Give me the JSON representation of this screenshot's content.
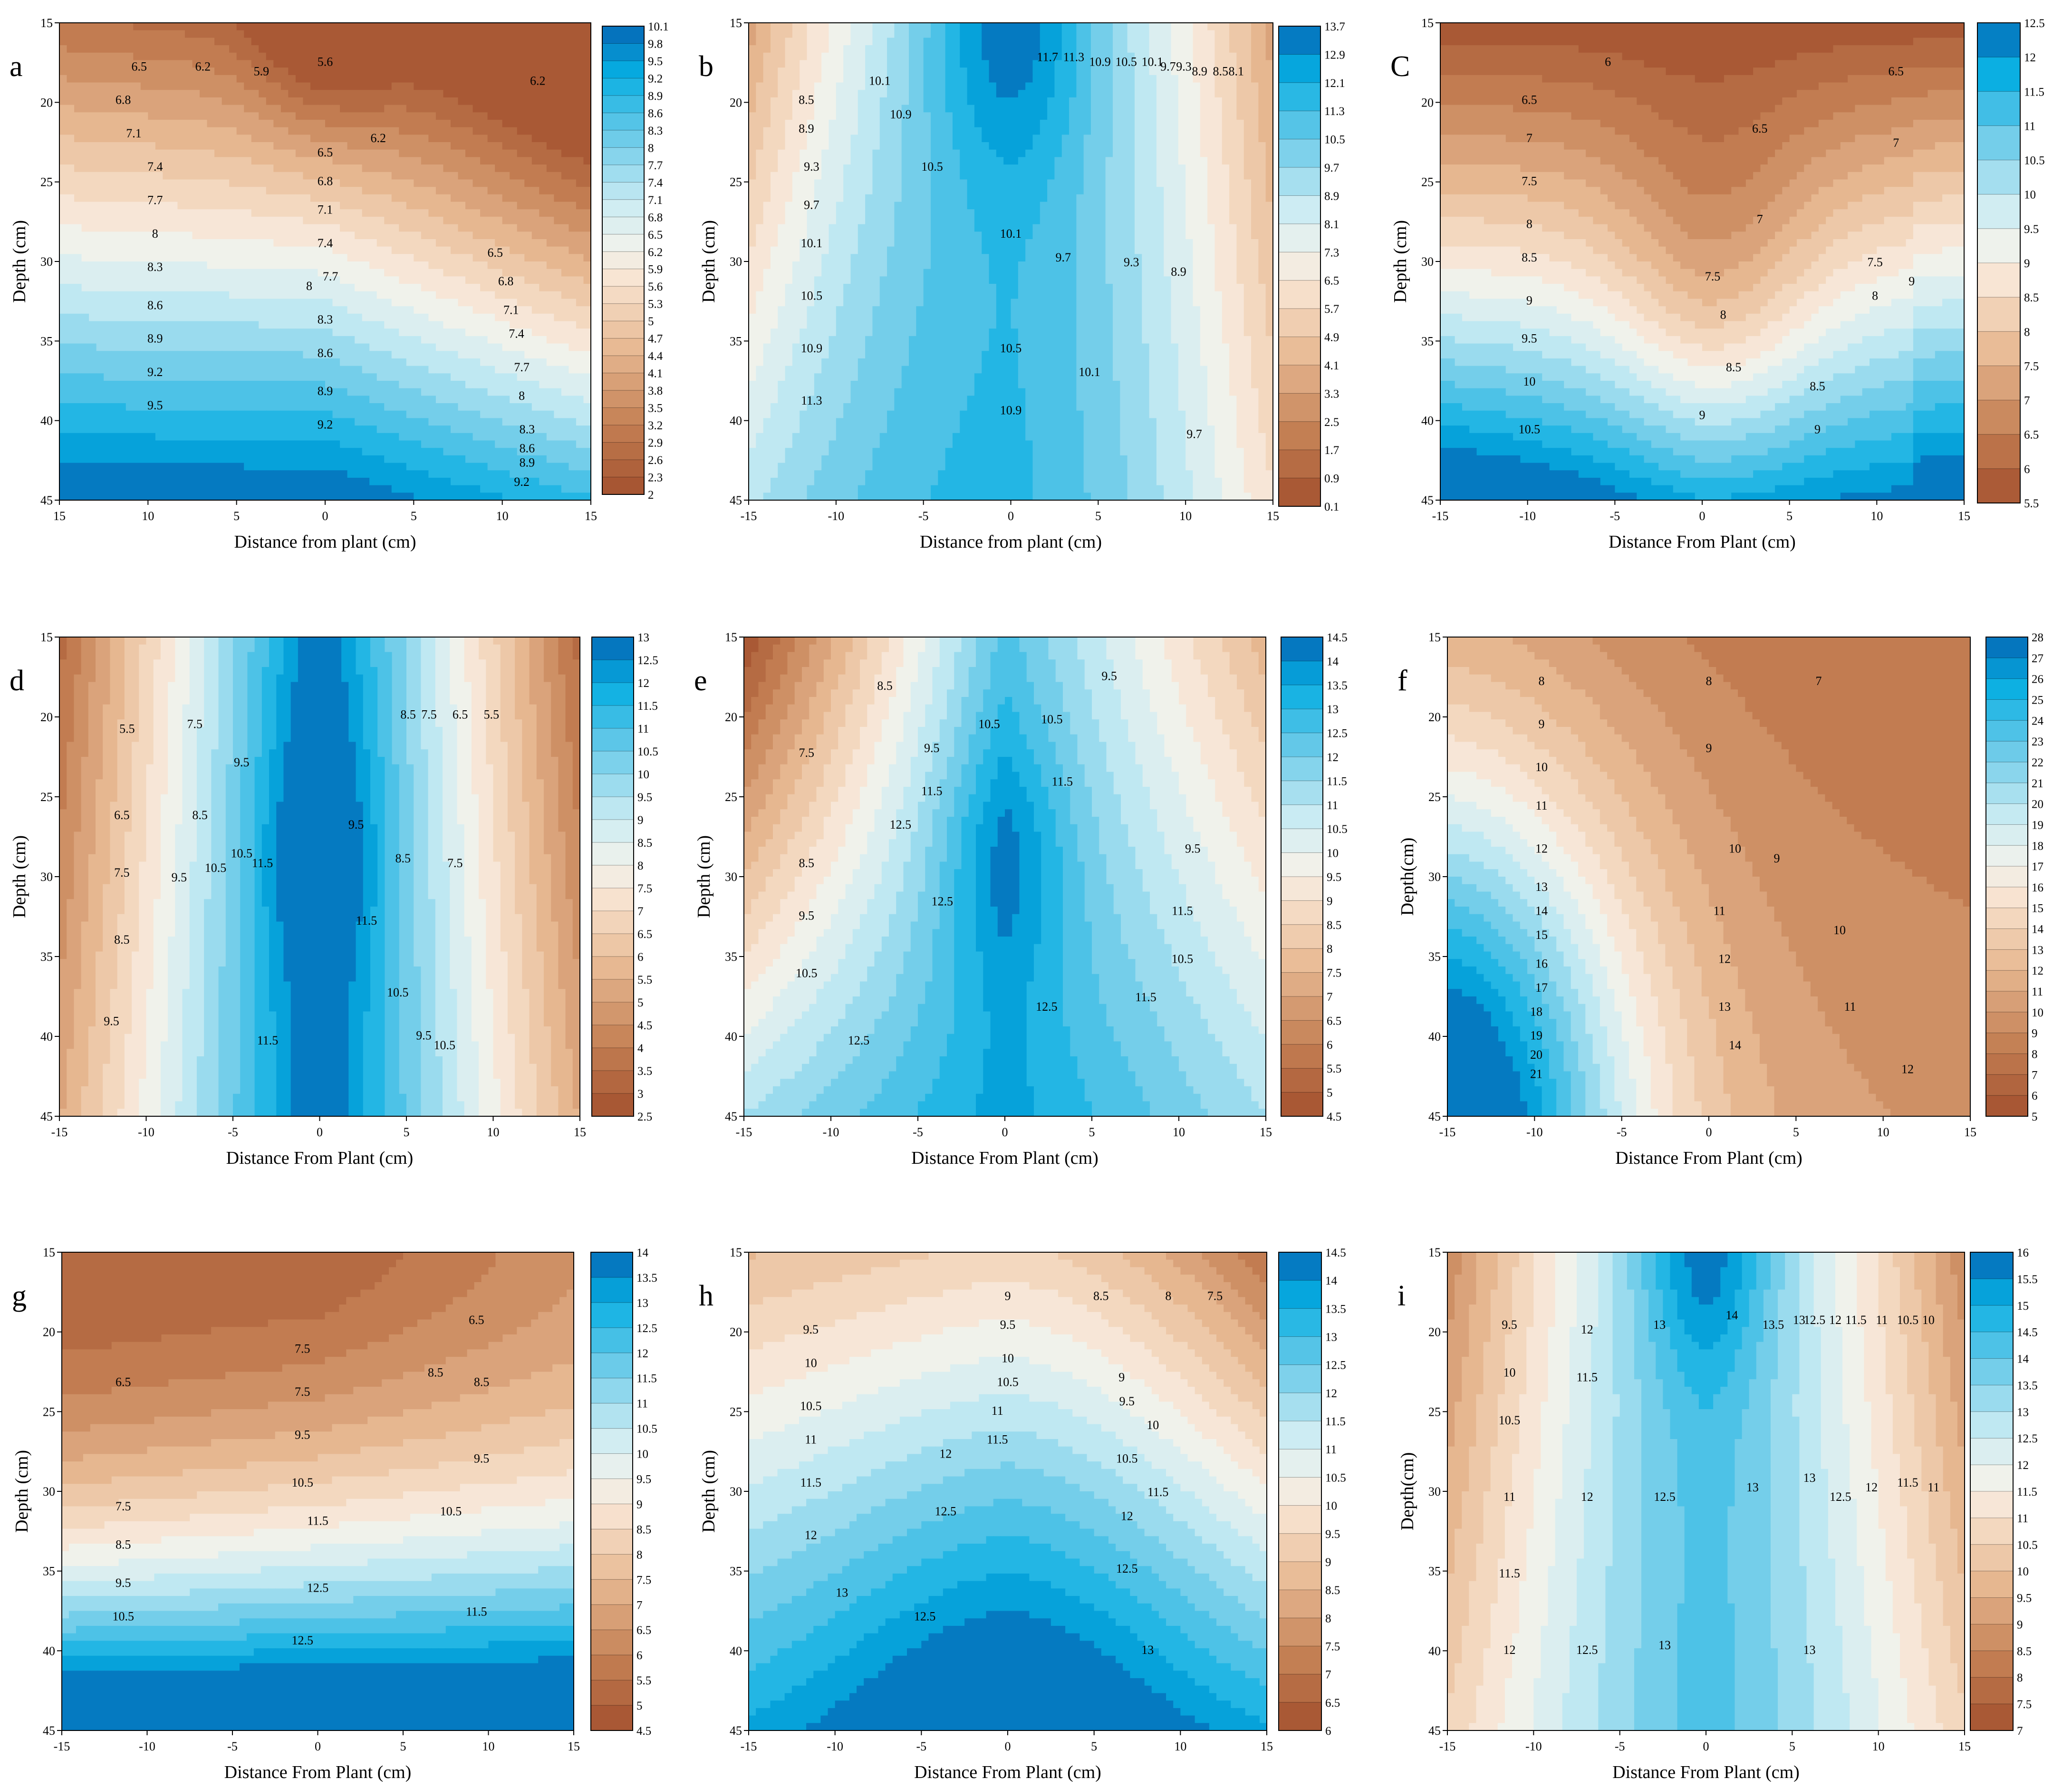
{
  "figure": {
    "title": "",
    "domain": "soil moisture contour panels"
  },
  "chart_data": [
    {
      "id": "a",
      "type": "contour",
      "letter": "a",
      "xlabel": "Distance from plant (cm)",
      "ylabel": "Depth (cm)",
      "xticks": [
        "15",
        "10",
        "5",
        "0",
        "5",
        "10",
        "15"
      ],
      "yticks": [
        "15",
        "20",
        "25",
        "30",
        "35",
        "40",
        "45"
      ],
      "xlim": [
        -15,
        15
      ],
      "ylim": [
        15,
        45
      ],
      "colorbar": {
        "min": 2,
        "max": 10.1,
        "ticks": [
          "10.1",
          "9.8",
          "9.5",
          "9.2",
          "8.9",
          "8.6",
          "8.3",
          "8",
          "7.7",
          "7.4",
          "7.1",
          "6.8",
          "6.5",
          "6.2",
          "5.9",
          "5.6",
          "5.3",
          "5",
          "4.7",
          "4.4",
          "4.1",
          "3.8",
          "3.5",
          "3.2",
          "2.9",
          "2.6",
          "2.3",
          "2"
        ]
      },
      "field": {
        "kind": "a",
        "vmin": 5.4,
        "vmax": 10.1
      },
      "contour_labels": [
        "6.5",
        "6.2",
        "5.9",
        "5.6",
        "6.2",
        "6.8",
        "7.1",
        "6.2",
        "7.4",
        "6.5",
        "7.7",
        "6.8",
        "7.1",
        "8",
        "7.4",
        "6.5",
        "8.3",
        "7.7",
        "6.8",
        "8",
        "7.1",
        "8.6",
        "8.3",
        "7.4",
        "8.9",
        "8.6",
        "7.7",
        "9.2",
        "8.9",
        "8",
        "9.5",
        "9.2",
        "8.3",
        "8.6",
        "8.9",
        "9.2"
      ]
    },
    {
      "id": "b",
      "type": "contour",
      "letter": "b",
      "xlabel": "Distance from plant (cm)",
      "ylabel": "Depth (cm)",
      "xticks": [
        "-15",
        "-10",
        "-5",
        "0",
        "5",
        "10",
        "15"
      ],
      "yticks": [
        "15",
        "20",
        "25",
        "30",
        "35",
        "40",
        "45"
      ],
      "xlim": [
        -15,
        15
      ],
      "ylim": [
        15,
        45
      ],
      "colorbar": {
        "min": 0.1,
        "max": 13.7,
        "ticks": [
          "13.7",
          "12.9",
          "12.1",
          "11.3",
          "10.5",
          "9.7",
          "8.9",
          "8.1",
          "7.3",
          "6.5",
          "5.7",
          "4.9",
          "4.1",
          "3.3",
          "2.5",
          "1.7",
          "0.9",
          "0.1"
        ]
      },
      "field": {
        "kind": "b",
        "vmin": 7.5,
        "vmax": 13.7
      },
      "contour_labels": [
        "10.1",
        "11.7",
        "11.3",
        "10.9",
        "10.5",
        "10.1",
        "9.7",
        "9.3",
        "8.9",
        "8.5",
        "8.1",
        "8.5",
        "8.9",
        "9.3",
        "9.7",
        "10.9",
        "10.5",
        "10.1",
        "10.1",
        "9.7",
        "9.3",
        "8.9",
        "10.5",
        "10.9",
        "10.5",
        "10.1",
        "11.3",
        "10.9",
        "9.7"
      ]
    },
    {
      "id": "c",
      "type": "contour",
      "letter": "C",
      "xlabel": "Distance From Plant (cm)",
      "ylabel": "Depth (cm)",
      "xticks": [
        "-15",
        "-10",
        "-5",
        "0",
        "5",
        "10",
        "15"
      ],
      "yticks": [
        "15",
        "20",
        "25",
        "30",
        "35",
        "40",
        "45"
      ],
      "xlim": [
        -15,
        15
      ],
      "ylim": [
        15,
        45
      ],
      "colorbar": {
        "min": 5.5,
        "max": 12.5,
        "ticks": [
          "12.5",
          "12",
          "11.5",
          "11",
          "10.5",
          "10",
          "9.5",
          "9",
          "8.5",
          "8",
          "7.5",
          "7",
          "6.5",
          "6",
          "5.5"
        ]
      },
      "field": {
        "kind": "c",
        "vmin": 5.5,
        "vmax": 12.5
      },
      "contour_labels": [
        "6",
        "6.5",
        "6.5",
        "6.5",
        "7",
        "7",
        "7",
        "7.5",
        "7.5",
        "7.5",
        "8",
        "8",
        "8",
        "8.5",
        "8.5",
        "8.5",
        "9",
        "9",
        "9",
        "9",
        "9.5",
        "10",
        "10.5"
      ]
    },
    {
      "id": "d",
      "type": "contour",
      "letter": "d",
      "xlabel": "Distance From Plant (cm)",
      "ylabel": "Depth (cm)",
      "xticks": [
        "-15",
        "-10",
        "-5",
        "0",
        "5",
        "10",
        "15"
      ],
      "yticks": [
        "15",
        "20",
        "25",
        "30",
        "35",
        "40",
        "45"
      ],
      "xlim": [
        -15,
        15
      ],
      "ylim": [
        15,
        45
      ],
      "colorbar": {
        "min": 2.5,
        "max": 13,
        "ticks": [
          "13",
          "12.5",
          "12",
          "11.5",
          "11",
          "10.5",
          "10",
          "9.5",
          "9",
          "8.5",
          "8",
          "7.5",
          "7",
          "6.5",
          "6",
          "5.5",
          "5",
          "4.5",
          "4",
          "3.5",
          "3",
          "2.5"
        ]
      },
      "field": {
        "kind": "d",
        "vmin": 2.5,
        "vmax": 13
      },
      "contour_labels": [
        "5.5",
        "7.5",
        "9.5",
        "8.5",
        "7.5",
        "6.5",
        "5.5",
        "6.5",
        "8.5",
        "10.5",
        "9.5",
        "7.5",
        "10.5",
        "11.5",
        "9.5",
        "8.5",
        "7.5",
        "11.5",
        "8.5",
        "10.5",
        "9.5",
        "9.5",
        "11.5",
        "10.5"
      ]
    },
    {
      "id": "e",
      "type": "contour",
      "letter": "e",
      "xlabel": "Distance From Plant (cm)",
      "ylabel": "Depth (cm)",
      "xticks": [
        "-15",
        "-10",
        "-5",
        "0",
        "5",
        "10",
        "15"
      ],
      "yticks": [
        "15",
        "20",
        "25",
        "30",
        "35",
        "40",
        "45"
      ],
      "xlim": [
        -15,
        15
      ],
      "ylim": [
        15,
        45
      ],
      "colorbar": {
        "min": 4.5,
        "max": 14.5,
        "ticks": [
          "14.5",
          "14",
          "13.5",
          "13",
          "12.5",
          "12",
          "11.5",
          "11",
          "10.5",
          "10",
          "9.5",
          "9",
          "8.5",
          "8",
          "7.5",
          "7",
          "6.5",
          "6",
          "5.5",
          "5",
          "4.5"
        ]
      },
      "field": {
        "kind": "e",
        "vmin": 4.5,
        "vmax": 14.5
      },
      "contour_labels": [
        "8.5",
        "9.5",
        "10.5",
        "7.5",
        "9.5",
        "11.5",
        "10.5",
        "12.5",
        "11.5",
        "9.5",
        "8.5",
        "12.5",
        "10.5",
        "9.5",
        "11.5",
        "10.5",
        "11.5",
        "12.5",
        "12.5"
      ]
    },
    {
      "id": "f",
      "type": "contour",
      "letter": "f",
      "xlabel": "Distance From Plant (cm)",
      "ylabel": "Depth(cm)",
      "xticks": [
        "-15",
        "-10",
        "-5",
        "0",
        "5",
        "10",
        "15"
      ],
      "yticks": [
        "15",
        "20",
        "25",
        "30",
        "35",
        "40",
        "45"
      ],
      "xlim": [
        -15,
        15
      ],
      "ylim": [
        15,
        45
      ],
      "colorbar": {
        "min": 5,
        "max": 28,
        "ticks": [
          "28",
          "27",
          "26",
          "25",
          "24",
          "23",
          "22",
          "21",
          "20",
          "19",
          "18",
          "17",
          "16",
          "15",
          "14",
          "13",
          "12",
          "11",
          "10",
          "9",
          "8",
          "7",
          "6",
          "5"
        ]
      },
      "field": {
        "kind": "f",
        "vmin": 5,
        "vmax": 28
      },
      "contour_labels": [
        "8",
        "8",
        "7",
        "9",
        "9",
        "10",
        "9",
        "11",
        "10",
        "12",
        "10",
        "13",
        "11",
        "14",
        "12",
        "15",
        "16",
        "13",
        "11",
        "17",
        "14",
        "18",
        "19",
        "12",
        "20",
        "21"
      ]
    },
    {
      "id": "g",
      "type": "contour",
      "letter": "g",
      "xlabel": "Distance From Plant (cm)",
      "ylabel": "Depth (cm)",
      "xticks": [
        "-15",
        "-10",
        "-5",
        "0",
        "5",
        "10",
        "15"
      ],
      "yticks": [
        "15",
        "20",
        "25",
        "30",
        "35",
        "40",
        "45"
      ],
      "xlim": [
        -15,
        15
      ],
      "ylim": [
        15,
        45
      ],
      "colorbar": {
        "min": 4.5,
        "max": 14,
        "ticks": [
          "14",
          "13.5",
          "13",
          "12.5",
          "12",
          "11.5",
          "11",
          "10.5",
          "10",
          "9.5",
          "9",
          "8.5",
          "8",
          "7.5",
          "7",
          "6.5",
          "6",
          "5.5",
          "5",
          "4.5"
        ]
      },
      "field": {
        "kind": "g",
        "vmin": 4.5,
        "vmax": 14
      },
      "contour_labels": [
        "6.5",
        "7.5",
        "6.5",
        "7.5",
        "8.5",
        "8.5",
        "9.5",
        "7.5",
        "9.5",
        "8.5",
        "10.5",
        "10.5",
        "9.5",
        "11.5",
        "10.5",
        "12.5",
        "11.5",
        "12.5"
      ]
    },
    {
      "id": "h",
      "type": "contour",
      "letter": "h",
      "xlabel": "Distance From Plant (cm)",
      "ylabel": "Depth (cm)",
      "xticks": [
        "-15",
        "-10",
        "-5",
        "0",
        "5",
        "10",
        "15"
      ],
      "yticks": [
        "15",
        "20",
        "25",
        "30",
        "35",
        "40",
        "45"
      ],
      "xlim": [
        -15,
        15
      ],
      "ylim": [
        15,
        45
      ],
      "colorbar": {
        "min": 6,
        "max": 14.5,
        "ticks": [
          "14.5",
          "14",
          "13.5",
          "13",
          "12.5",
          "12",
          "11.5",
          "11",
          "10.5",
          "10",
          "9.5",
          "9",
          "8.5",
          "8",
          "7.5",
          "7",
          "6.5",
          "6"
        ]
      },
      "field": {
        "kind": "h",
        "vmin": 6,
        "vmax": 14.5
      },
      "contour_labels": [
        "9",
        "8.5",
        "8",
        "7.5",
        "9.5",
        "9.5",
        "9",
        "10",
        "10",
        "9.5",
        "10.5",
        "10.5",
        "10",
        "11",
        "11.5",
        "11",
        "10.5",
        "12",
        "11.5",
        "12.5",
        "11.5",
        "12",
        "12",
        "12.5",
        "13",
        "12.5",
        "13"
      ]
    },
    {
      "id": "i",
      "type": "contour",
      "letter": "i",
      "xlabel": "Distance From Plant (cm)",
      "ylabel": "Depth(cm)",
      "xticks": [
        "-15",
        "-10",
        "-5",
        "0",
        "5",
        "10",
        "15"
      ],
      "yticks": [
        "15",
        "20",
        "25",
        "30",
        "35",
        "40",
        "45"
      ],
      "xlim": [
        -15,
        15
      ],
      "ylim": [
        15,
        45
      ],
      "colorbar": {
        "min": 7,
        "max": 16,
        "ticks": [
          "16",
          "15.5",
          "15",
          "14.5",
          "14",
          "13.5",
          "13",
          "12.5",
          "12",
          "11.5",
          "11",
          "10.5",
          "10",
          "9.5",
          "9",
          "8.5",
          "8",
          "7.5",
          "7"
        ]
      },
      "field": {
        "kind": "i",
        "vmin": 7,
        "vmax": 16
      },
      "contour_labels": [
        "9.5",
        "12",
        "13",
        "14",
        "13.5",
        "13",
        "12.5",
        "12",
        "11.5",
        "11",
        "10.5",
        "10",
        "10",
        "11.5",
        "10.5",
        "11",
        "12",
        "12.5",
        "13",
        "13",
        "12.5",
        "12",
        "11.5",
        "11",
        "11.5",
        "12",
        "12.5",
        "13",
        "13"
      ]
    }
  ]
}
